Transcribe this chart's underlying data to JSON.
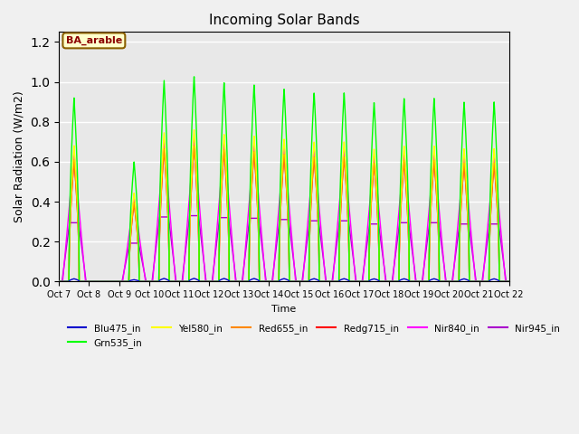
{
  "title": "Incoming Solar Bands",
  "xlabel": "Time",
  "ylabel": "Solar Radiation (W/m2)",
  "annotation": "BA_arable",
  "ylim": [
    0,
    1.25
  ],
  "legend_entries": [
    "Blu475_in",
    "Grn535_in",
    "Yel580_in",
    "Red655_in",
    "Redg715_in",
    "Nir840_in",
    "Nir945_in"
  ],
  "legend_colors": [
    "#0000cc",
    "#00ff00",
    "#ffff00",
    "#ff8800",
    "#ff0000",
    "#ff00ff",
    "#aa00cc"
  ],
  "tick_dates": [
    "Oct 7",
    "Oct 8",
    "Oct 9",
    "Oct 10",
    "Oct 11",
    "Oct 12",
    "Oct 13",
    "Oct 14",
    "Oct 15",
    "Oct 16",
    "Oct 17",
    "Oct 18",
    "Oct 19",
    "Oct 20",
    "Oct 21",
    "Oct 22"
  ],
  "n_days": 16,
  "samples_per_day": 200,
  "green_peaks": [
    0.92,
    0.0,
    0.6,
    1.01,
    1.03,
    1.0,
    0.99,
    0.97,
    0.95,
    0.95,
    0.9,
    0.92,
    0.92,
    0.9,
    0.9,
    0.0
  ],
  "fig_facecolor": "#f0f0f0",
  "ax_facecolor": "#e8e8e8"
}
